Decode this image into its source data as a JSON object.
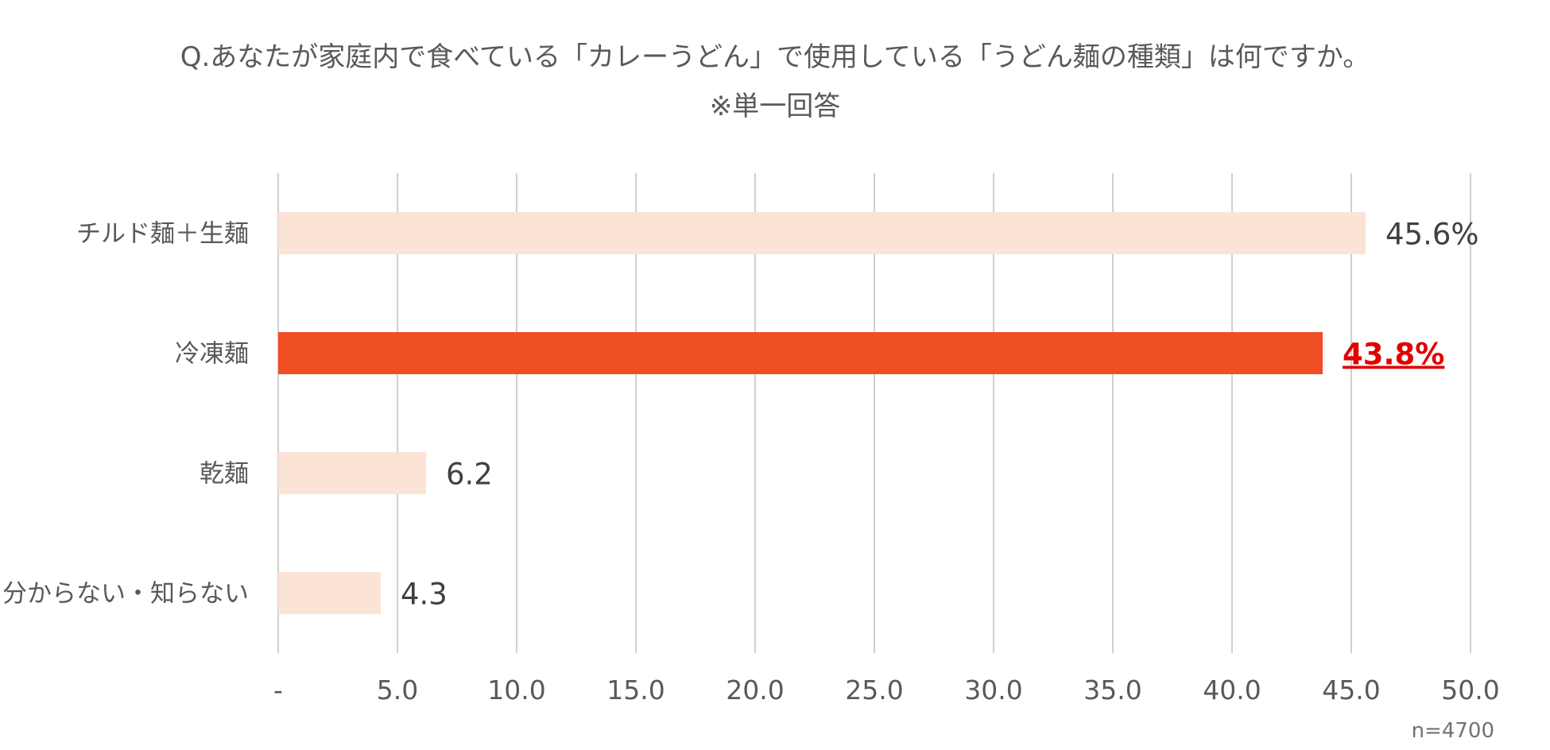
{
  "chart_data": {
    "type": "bar",
    "orientation": "horizontal",
    "title": "Q.あなたが家庭内で食べている「カレーうどん」で使用している「うどん麺の種類」は何ですか。",
    "subtitle": "※単一回答",
    "categories": [
      "チルド麺＋生麺",
      "冷凍麺",
      "乾麺",
      "分からない・知らない"
    ],
    "values": [
      45.6,
      43.8,
      6.2,
      4.3
    ],
    "data_labels": [
      "45.6%",
      "43.8%",
      "6.2",
      "4.3"
    ],
    "highlight_index": 1,
    "xlim": [
      0,
      50
    ],
    "x_ticks": [
      "-",
      "5.0",
      "10.0",
      "15.0",
      "20.0",
      "25.0",
      "30.0",
      "35.0",
      "40.0",
      "45.0",
      "50.0"
    ],
    "grid": true,
    "note": "n=4700",
    "colors": {
      "bar": "#fbe4d6",
      "highlight_bar": "#f04e23",
      "highlight_label": "#e00000",
      "label": "#404040",
      "tick": "#595959",
      "grid": "#d0d0d0"
    }
  }
}
